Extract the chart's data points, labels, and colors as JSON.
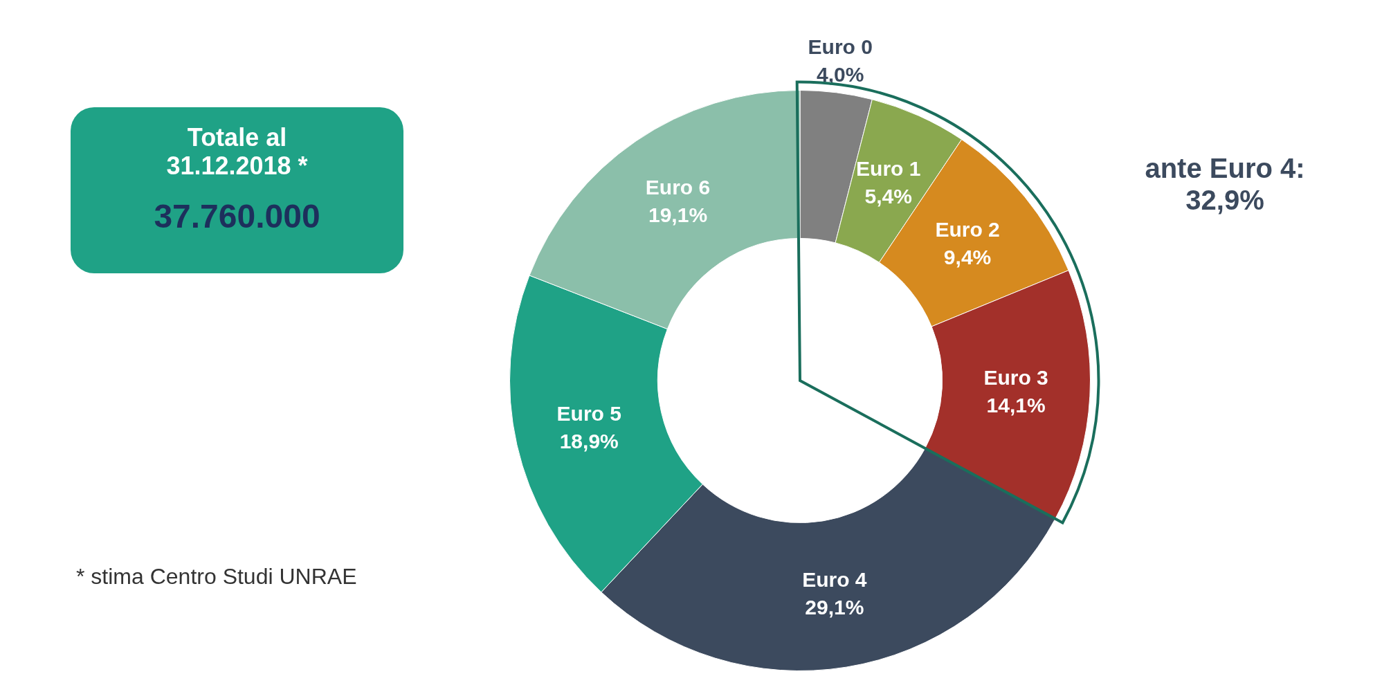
{
  "chart_data": {
    "type": "donut",
    "categories": [
      "Euro 0",
      "Euro 1",
      "Euro 2",
      "Euro 3",
      "Euro 4",
      "Euro 5",
      "Euro 6"
    ],
    "values": [
      4.0,
      5.4,
      9.4,
      14.1,
      29.1,
      18.9,
      19.1
    ],
    "value_labels": [
      "4,0%",
      "5,4%",
      "9,4%",
      "14,1%",
      "29,1%",
      "18,9%",
      "19,1%"
    ],
    "colors": [
      "#808080",
      "#8aa84f",
      "#d68a1f",
      "#a3302a",
      "#3c4a5e",
      "#1fa286",
      "#8bbfaa"
    ],
    "legend": false,
    "annotations": [
      "Totale al\n31.12.2018 *",
      "37.760.000",
      "ante Euro 4:\n32,9%",
      "* stima Centro Studi UNRAE"
    ]
  }
}
